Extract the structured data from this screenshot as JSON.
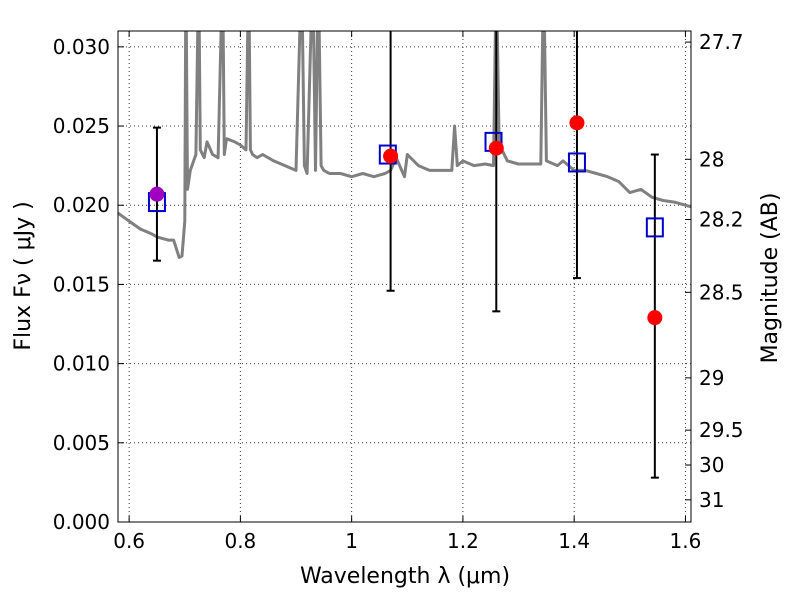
{
  "chart_data": {
    "type": "scatter",
    "title": "",
    "xlabel": "Wavelength  λ (μm)",
    "ylabel": "Flux  Fν  ( μJy )",
    "y2label": "Magnitude (AB)",
    "xlim": [
      0.58,
      1.61
    ],
    "ylim": [
      0.0,
      0.031
    ],
    "grid": true,
    "xticks": [
      0.6,
      0.8,
      1.0,
      1.2,
      1.4,
      1.6
    ],
    "xtick_labels": [
      "0.6",
      "0.8",
      "1",
      "1.2",
      "1.4",
      "1.6"
    ],
    "yticks": [
      0.0,
      0.005,
      0.01,
      0.015,
      0.02,
      0.025,
      0.03
    ],
    "ytick_labels": [
      "0.000",
      "0.005",
      "0.010",
      "0.015",
      "0.020",
      "0.025",
      "0.030"
    ],
    "y2ticks": [
      {
        "label": "27.7",
        "flux": 0.0303
      },
      {
        "label": "28",
        "flux": 0.0229
      },
      {
        "label": "28.2",
        "flux": 0.0191
      },
      {
        "label": "28.5",
        "flux": 0.0145
      },
      {
        "label": "29",
        "flux": 0.0091
      },
      {
        "label": "29.5",
        "flux": 0.0058
      },
      {
        "label": "30",
        "flux": 0.0036
      },
      {
        "label": "31",
        "flux": 0.0014
      }
    ],
    "colors": {
      "spectrum": "#808080",
      "observed": "#ff0000",
      "model": "#0000cc",
      "first_point": "#a000c0",
      "errorbar": "#000000"
    },
    "spectrum": {
      "x": [
        0.58,
        0.6,
        0.62,
        0.64,
        0.65,
        0.67,
        0.68,
        0.69,
        0.695,
        0.7,
        0.702,
        0.705,
        0.71,
        0.72,
        0.725,
        0.728,
        0.735,
        0.74,
        0.75,
        0.76,
        0.768,
        0.771,
        0.775,
        0.79,
        0.8,
        0.81,
        0.815,
        0.818,
        0.822,
        0.83,
        0.84,
        0.86,
        0.88,
        0.9,
        0.91,
        0.915,
        0.92,
        0.93,
        0.935,
        0.94,
        0.945,
        0.95,
        0.96,
        0.98,
        1.0,
        1.02,
        1.04,
        1.06,
        1.07,
        1.08,
        1.09,
        1.095,
        1.1,
        1.12,
        1.14,
        1.16,
        1.18,
        1.185,
        1.19,
        1.2,
        1.22,
        1.24,
        1.255,
        1.26,
        1.265,
        1.27,
        1.28,
        1.3,
        1.32,
        1.34,
        1.345,
        1.35,
        1.37,
        1.38,
        1.4,
        1.42,
        1.44,
        1.46,
        1.48,
        1.5,
        1.52,
        1.54,
        1.56,
        1.58,
        1.6,
        1.61
      ],
      "y": [
        0.0195,
        0.019,
        0.0185,
        0.0182,
        0.018,
        0.0178,
        0.0178,
        0.0167,
        0.0168,
        0.019,
        0.035,
        0.021,
        0.0222,
        0.0232,
        0.035,
        0.0235,
        0.023,
        0.024,
        0.0232,
        0.023,
        0.035,
        0.0232,
        0.0242,
        0.024,
        0.0238,
        0.0235,
        0.035,
        0.0235,
        0.0232,
        0.023,
        0.0232,
        0.0228,
        0.0225,
        0.0222,
        0.035,
        0.0225,
        0.022,
        0.035,
        0.0222,
        0.035,
        0.0225,
        0.0222,
        0.022,
        0.022,
        0.0218,
        0.022,
        0.0218,
        0.022,
        0.0222,
        0.023,
        0.0222,
        0.0218,
        0.0232,
        0.0225,
        0.0222,
        0.0222,
        0.0222,
        0.025,
        0.0225,
        0.0228,
        0.0225,
        0.0226,
        0.0225,
        0.035,
        0.024,
        0.0235,
        0.0228,
        0.0226,
        0.0226,
        0.0226,
        0.035,
        0.0228,
        0.0225,
        0.0228,
        0.0222,
        0.0222,
        0.022,
        0.0218,
        0.0215,
        0.0208,
        0.021,
        0.0205,
        0.0203,
        0.0202,
        0.02,
        0.0199
      ]
    },
    "observed": [
      {
        "x": 0.65,
        "y": 0.0207,
        "yerr_low": 0.0165,
        "yerr_high": 0.0249
      },
      {
        "x": 1.07,
        "y": 0.0231,
        "yerr_low": 0.0146,
        "yerr_high": 0.035
      },
      {
        "x": 1.26,
        "y": 0.0236,
        "yerr_low": 0.0133,
        "yerr_high": 0.035
      },
      {
        "x": 1.405,
        "y": 0.0252,
        "yerr_low": 0.0154,
        "yerr_high": 0.035
      },
      {
        "x": 1.545,
        "y": 0.0129,
        "yerr_low": 0.0028,
        "yerr_high": 0.0232
      }
    ],
    "model": [
      {
        "x": 0.65,
        "y": 0.0202
      },
      {
        "x": 1.065,
        "y": 0.0232
      },
      {
        "x": 1.255,
        "y": 0.024
      },
      {
        "x": 1.405,
        "y": 0.0227
      },
      {
        "x": 1.545,
        "y": 0.0186
      }
    ]
  }
}
